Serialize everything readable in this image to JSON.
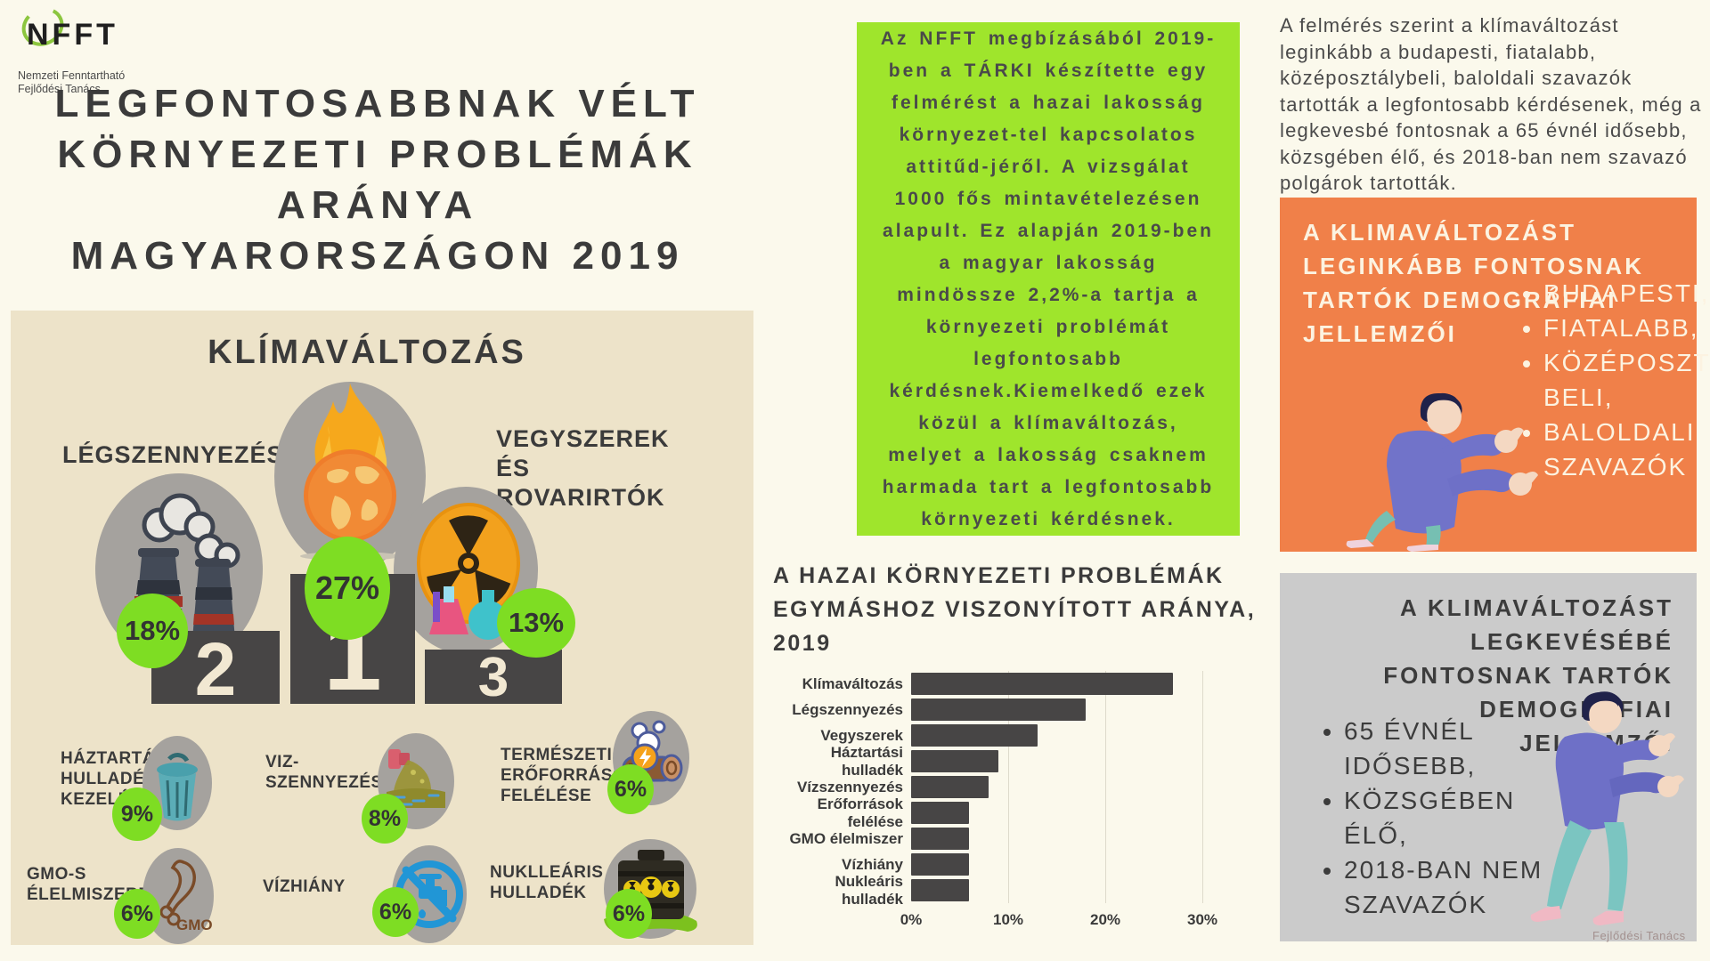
{
  "logo": {
    "name": "NFFT",
    "subtitle_line1": "Nemzeti Fenntartható",
    "subtitle_line2": "Fejlődési Tanács"
  },
  "title": {
    "lines": [
      "LEGFONTOSABBNAK VÉLT",
      "KÖRNYEZETI PROBLÉMÁK",
      "ARÁNYA",
      "MAGYARORSZÁGON 2019"
    ]
  },
  "podium_panel": {
    "heading": "KLÍMAVÁLTOZÁS",
    "top3": [
      {
        "rank": "1",
        "label": "KLÍMAVÁLTOZÁS",
        "pct": "27%",
        "icon": "burning-globe"
      },
      {
        "rank": "2",
        "label": "LÉGSZENNYEZÉS",
        "pct": "18%",
        "icon": "factory-smokestacks"
      },
      {
        "rank": "3",
        "label": "VEGYSZEREK ÉS ROVARIRTÓK",
        "pct": "13%",
        "icon": "radiation-chemicals"
      }
    ],
    "others": [
      {
        "label": "HÁZTARTÁSI HULLADÉK- KEZELÉS",
        "pct": "9%",
        "icon": "trash-can"
      },
      {
        "label": "VIZ- SZENNYEZÉS",
        "pct": "8%",
        "icon": "water-pollution"
      },
      {
        "label": "TERMÉSZETI ERŐFORRÁSOK FELÉLÉSE",
        "pct": "6%",
        "icon": "log-energy"
      },
      {
        "label": "GMO-S ÉLELMISZEREK",
        "pct": "6%",
        "icon": "gmo-food"
      },
      {
        "label": "VÍZHIÁNY",
        "pct": "6%",
        "icon": "no-water"
      },
      {
        "label": "NUKLLEÁRIS HULLADÉK",
        "pct": "6%",
        "icon": "nuclear-waste"
      }
    ]
  },
  "about_box": {
    "text": "Az NFFT megbízásából 2019-ben a TÁRKI készítette egy felmérést a hazai lakosság környezet-tel kapcsolatos attitűd-jéről. A vizsgálat 1000 fős mintavételezésen alapult. Ez alapján 2019-ben a magyar lakosság mindössze 2,2%-a tartja a környezeti problémát legfontosabb kérdésnek.Kiemelkedő ezek közül a klímaváltozás, melyet a lakosság csaknem harmada tart a legfontosabb környezeti kérdésnek."
  },
  "chart_data": {
    "type": "bar",
    "orientation": "horizontal",
    "title": "A HAZAI KÖRNYEZETI PROBLÉMÁK EGYMÁSHOZ VISZONYÍTOTT ARÁNYA, 2019",
    "categories": [
      "Klímaváltozás",
      "Légszennyezés",
      "Vegyszerek",
      "Háztartási hulladék",
      "Vízszennyezés",
      "Erőforrások felélése",
      "GMO élelmiszer",
      "Vízhiány",
      "Nukleáris hulladék"
    ],
    "values": [
      27,
      18,
      13,
      9,
      8,
      6,
      6,
      6,
      6
    ],
    "unit": "%",
    "xlim": [
      0,
      30
    ],
    "xticks": [
      "0%",
      "10%",
      "20%",
      "30%"
    ],
    "grid": true,
    "bar_color": "#474545",
    "legend": "none"
  },
  "survey_note": "A felmérés szerint a klímaváltozást leginkább a budapesti, fiatalabb, középosztálybeli, baloldali szavazók tartották a legfontosabb kérdésenek, még a legkevesbé fontosnak a 65 évnél idősebb, közsgében élő, és 2018-ban nem szavazó polgárok tartották.",
  "most_box": {
    "heading": "A KLIMAVÁLTOZÁST LEGINKÁBB FONTOSNAK TARTÓK DEMOGRÁFIAI JELLEMZŐI",
    "bullets": [
      "BUDAPESTI,",
      "FIATALABB,",
      "KÖZÉPOSZTÁLY-BELI,",
      "BALOLDALI SZAVAZÓK"
    ]
  },
  "least_box": {
    "heading": "A KLIMAVÁLTOZÁST LEGKEVÉSÉBÉ FONTOSNAK TARTÓK DEMOGRÁFIAI JELLEMZŐI",
    "bullets": [
      "65 ÉVNÉL IDŐSEBB,",
      "KÖZSGÉBEN ÉLŐ,",
      "2018-BAN NEM SZAVAZÓK"
    ]
  },
  "watermark": "Fejlődési Tanács",
  "colors": {
    "background": "#FBF9EC",
    "panel_beige": "#EDE3C9",
    "lime_circle": "#7EDD23",
    "lime_box": "#9FE52C",
    "dark_text": "#3B3B3B",
    "podium_gray": "#474545",
    "icon_ellipse_gray": "#A5A29E",
    "orange_box": "#F08049",
    "gray_box": "#CBCBCB",
    "cream_text": "#FCF3E1"
  }
}
